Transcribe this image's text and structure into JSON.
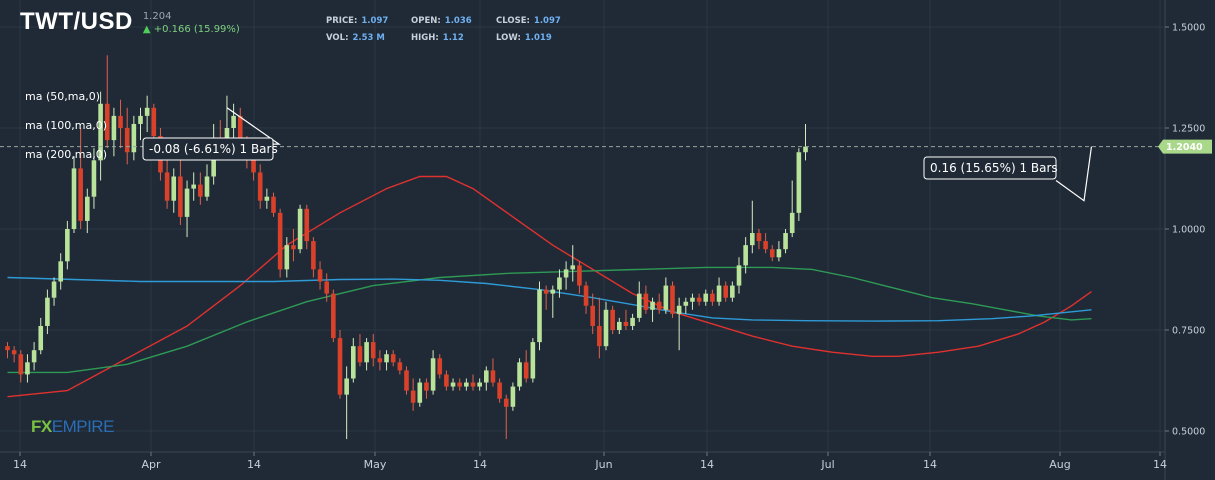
{
  "header": {
    "symbol": "TWT/USD",
    "last": "1.204",
    "change": "+0.166 (15.99%)",
    "change_arrow_icon": "arrow-up-icon"
  },
  "stats": {
    "price_label": "PRICE:",
    "price": "1.097",
    "open_label": "OPEN:",
    "open": "1.036",
    "close_label": "CLOSE:",
    "close": "1.097",
    "vol_label": "VOL:",
    "vol": "2.53 M",
    "high_label": "HIGH:",
    "high": "1.12",
    "low_label": "LOW:",
    "low": "1.019"
  },
  "indicators": [
    "ma (50,ma,0)",
    "ma (100,ma,0)",
    "ma (200,ma,0)"
  ],
  "logo": {
    "fx": "FX",
    "empire": "EMPIRE"
  },
  "measures": [
    {
      "label": "-0.08 (-6.61%) 1 Bars"
    },
    {
      "label": "0.16 (15.65%) 1 Bars"
    }
  ],
  "price_line": {
    "value": 1.204,
    "label": "1.2040"
  },
  "colors": {
    "background": "#1f2a36",
    "up": "#b9e39a",
    "down": "#d9412b",
    "ma50": "#e0312f",
    "ma100": "#2e9a55",
    "ma200": "#2e9ad6",
    "grid": "#2b3744"
  },
  "chart_data": {
    "type": "candlestick",
    "ylim": [
      0.45,
      1.55
    ],
    "y_ticks": [
      "1.5000",
      "1.2500",
      "1.0000",
      "0.7500",
      "0.5000"
    ],
    "x_ticks": [
      "14",
      "Apr",
      "14",
      "May",
      "14",
      "Jun",
      "14",
      "Jul",
      "14",
      "Aug",
      "14"
    ],
    "grid": true,
    "series": [
      {
        "name": "TWT/USD",
        "type": "candlestick",
        "ohlc": [
          [
            0.71,
            0.72,
            0.68,
            0.7
          ],
          [
            0.7,
            0.71,
            0.67,
            0.69
          ],
          [
            0.69,
            0.7,
            0.62,
            0.64
          ],
          [
            0.64,
            0.69,
            0.62,
            0.67
          ],
          [
            0.67,
            0.72,
            0.65,
            0.7
          ],
          [
            0.7,
            0.78,
            0.69,
            0.76
          ],
          [
            0.76,
            0.85,
            0.74,
            0.83
          ],
          [
            0.83,
            0.88,
            0.81,
            0.87
          ],
          [
            0.87,
            0.94,
            0.85,
            0.92
          ],
          [
            0.92,
            1.02,
            0.9,
            1.0
          ],
          [
            1.0,
            1.18,
            0.99,
            1.15
          ],
          [
            1.15,
            1.25,
            1.0,
            1.02
          ],
          [
            1.02,
            1.1,
            0.99,
            1.08
          ],
          [
            1.08,
            1.2,
            1.05,
            1.17
          ],
          [
            1.17,
            1.34,
            1.12,
            1.31
          ],
          [
            1.31,
            1.43,
            1.2,
            1.22
          ],
          [
            1.22,
            1.3,
            1.18,
            1.28
          ],
          [
            1.28,
            1.32,
            1.2,
            1.25
          ],
          [
            1.25,
            1.3,
            1.16,
            1.19
          ],
          [
            1.19,
            1.28,
            1.17,
            1.26
          ],
          [
            1.26,
            1.3,
            1.22,
            1.28
          ],
          [
            1.28,
            1.33,
            1.24,
            1.3
          ],
          [
            1.3,
            1.31,
            1.21,
            1.23
          ],
          [
            1.23,
            1.25,
            1.12,
            1.14
          ],
          [
            1.14,
            1.17,
            1.05,
            1.07
          ],
          [
            1.07,
            1.15,
            1.04,
            1.13
          ],
          [
            1.13,
            1.18,
            1.01,
            1.03
          ],
          [
            1.03,
            1.12,
            0.98,
            1.1
          ],
          [
            1.1,
            1.14,
            1.07,
            1.11
          ],
          [
            1.11,
            1.14,
            1.06,
            1.08
          ],
          [
            1.08,
            1.16,
            1.07,
            1.13
          ],
          [
            1.13,
            1.26,
            1.11,
            1.21
          ],
          [
            1.21,
            1.27,
            1.17,
            1.2
          ],
          [
            1.2,
            1.33,
            1.18,
            1.25
          ],
          [
            1.25,
            1.31,
            1.22,
            1.28
          ],
          [
            1.28,
            1.3,
            1.18,
            1.2
          ],
          [
            1.2,
            1.23,
            1.15,
            1.17
          ],
          [
            1.17,
            1.21,
            1.12,
            1.14
          ],
          [
            1.14,
            1.16,
            1.05,
            1.07
          ],
          [
            1.07,
            1.1,
            1.05,
            1.08
          ],
          [
            1.08,
            1.09,
            1.03,
            1.04
          ],
          [
            1.04,
            1.05,
            0.88,
            0.9
          ],
          [
            0.9,
            0.98,
            0.88,
            0.96
          ],
          [
            0.96,
            1.0,
            0.92,
            0.95
          ],
          [
            0.95,
            1.06,
            0.94,
            1.05
          ],
          [
            1.05,
            1.06,
            0.95,
            0.97
          ],
          [
            0.97,
            0.98,
            0.88,
            0.9
          ],
          [
            0.9,
            0.92,
            0.85,
            0.87
          ],
          [
            0.87,
            0.89,
            0.82,
            0.84
          ],
          [
            0.84,
            0.85,
            0.72,
            0.73
          ],
          [
            0.73,
            0.75,
            0.58,
            0.59
          ],
          [
            0.59,
            0.66,
            0.48,
            0.63
          ],
          [
            0.63,
            0.73,
            0.62,
            0.71
          ],
          [
            0.71,
            0.74,
            0.66,
            0.67
          ],
          [
            0.67,
            0.73,
            0.65,
            0.72
          ],
          [
            0.72,
            0.74,
            0.66,
            0.68
          ],
          [
            0.68,
            0.7,
            0.65,
            0.67
          ],
          [
            0.67,
            0.7,
            0.65,
            0.69
          ],
          [
            0.69,
            0.7,
            0.66,
            0.67
          ],
          [
            0.67,
            0.68,
            0.64,
            0.65
          ],
          [
            0.65,
            0.66,
            0.59,
            0.6
          ],
          [
            0.6,
            0.63,
            0.55,
            0.57
          ],
          [
            0.57,
            0.63,
            0.56,
            0.62
          ],
          [
            0.62,
            0.63,
            0.58,
            0.6
          ],
          [
            0.6,
            0.7,
            0.59,
            0.68
          ],
          [
            0.68,
            0.69,
            0.63,
            0.64
          ],
          [
            0.64,
            0.65,
            0.6,
            0.61
          ],
          [
            0.61,
            0.63,
            0.6,
            0.62
          ],
          [
            0.62,
            0.63,
            0.6,
            0.61
          ],
          [
            0.61,
            0.63,
            0.6,
            0.62
          ],
          [
            0.62,
            0.64,
            0.6,
            0.61
          ],
          [
            0.61,
            0.63,
            0.6,
            0.62
          ],
          [
            0.62,
            0.66,
            0.6,
            0.65
          ],
          [
            0.65,
            0.68,
            0.61,
            0.62
          ],
          [
            0.62,
            0.63,
            0.57,
            0.58
          ],
          [
            0.58,
            0.59,
            0.48,
            0.56
          ],
          [
            0.56,
            0.62,
            0.55,
            0.61
          ],
          [
            0.61,
            0.68,
            0.6,
            0.67
          ],
          [
            0.67,
            0.7,
            0.62,
            0.63
          ],
          [
            0.63,
            0.73,
            0.62,
            0.72
          ],
          [
            0.72,
            0.87,
            0.7,
            0.85
          ],
          [
            0.85,
            0.86,
            0.8,
            0.84
          ],
          [
            0.84,
            0.86,
            0.78,
            0.85
          ],
          [
            0.85,
            0.9,
            0.83,
            0.88
          ],
          [
            0.88,
            0.92,
            0.85,
            0.9
          ],
          [
            0.9,
            0.96,
            0.87,
            0.91
          ],
          [
            0.91,
            0.92,
            0.84,
            0.86
          ],
          [
            0.86,
            0.87,
            0.79,
            0.81
          ],
          [
            0.81,
            0.84,
            0.74,
            0.76
          ],
          [
            0.76,
            0.83,
            0.68,
            0.71
          ],
          [
            0.71,
            0.82,
            0.7,
            0.8
          ],
          [
            0.8,
            0.81,
            0.74,
            0.75
          ],
          [
            0.75,
            0.78,
            0.74,
            0.77
          ],
          [
            0.77,
            0.8,
            0.75,
            0.76
          ],
          [
            0.76,
            0.79,
            0.75,
            0.78
          ],
          [
            0.78,
            0.87,
            0.77,
            0.84
          ],
          [
            0.84,
            0.86,
            0.79,
            0.8
          ],
          [
            0.8,
            0.83,
            0.77,
            0.82
          ],
          [
            0.82,
            0.84,
            0.79,
            0.8
          ],
          [
            0.8,
            0.88,
            0.79,
            0.86
          ],
          [
            0.86,
            0.87,
            0.78,
            0.79
          ],
          [
            0.79,
            0.83,
            0.7,
            0.81
          ],
          [
            0.81,
            0.83,
            0.79,
            0.82
          ],
          [
            0.82,
            0.84,
            0.8,
            0.83
          ],
          [
            0.83,
            0.84,
            0.81,
            0.82
          ],
          [
            0.82,
            0.85,
            0.81,
            0.84
          ],
          [
            0.84,
            0.85,
            0.81,
            0.82
          ],
          [
            0.82,
            0.88,
            0.81,
            0.86
          ],
          [
            0.86,
            0.87,
            0.82,
            0.83
          ],
          [
            0.83,
            0.87,
            0.82,
            0.86
          ],
          [
            0.86,
            0.93,
            0.84,
            0.91
          ],
          [
            0.91,
            0.98,
            0.89,
            0.96
          ],
          [
            0.96,
            1.07,
            0.94,
            0.99
          ],
          [
            0.99,
            1.0,
            0.95,
            0.97
          ],
          [
            0.97,
            0.99,
            0.94,
            0.95
          ],
          [
            0.95,
            0.96,
            0.92,
            0.93
          ],
          [
            0.93,
            0.97,
            0.92,
            0.95
          ],
          [
            0.95,
            1.0,
            0.94,
            0.99
          ],
          [
            0.99,
            1.12,
            0.98,
            1.04
          ],
          [
            1.04,
            1.2,
            1.02,
            1.19
          ],
          [
            1.19,
            1.26,
            1.17,
            1.204
          ]
        ]
      },
      {
        "name": "ma (50,ma,0)",
        "type": "line",
        "color": "#e0312f",
        "points": [
          [
            0,
            0.585
          ],
          [
            9,
            0.6
          ],
          [
            18,
            0.68
          ],
          [
            27,
            0.76
          ],
          [
            35,
            0.86
          ],
          [
            42,
            0.96
          ],
          [
            50,
            1.04
          ],
          [
            57,
            1.1
          ],
          [
            62,
            1.13
          ],
          [
            66,
            1.13
          ],
          [
            70,
            1.1
          ],
          [
            76,
            1.03
          ],
          [
            82,
            0.96
          ],
          [
            88,
            0.9
          ],
          [
            94,
            0.84
          ],
          [
            100,
            0.795
          ],
          [
            106,
            0.765
          ],
          [
            112,
            0.735
          ],
          [
            118,
            0.71
          ],
          [
            124,
            0.695
          ],
          [
            130,
            0.685
          ],
          [
            134,
            0.685
          ],
          [
            140,
            0.695
          ],
          [
            146,
            0.71
          ],
          [
            152,
            0.74
          ],
          [
            156,
            0.77
          ],
          [
            160,
            0.81
          ],
          [
            163,
            0.845
          ]
        ]
      },
      {
        "name": "ma (100,ma,0)",
        "type": "line",
        "color": "#2e9a55",
        "points": [
          [
            0,
            0.645
          ],
          [
            9,
            0.645
          ],
          [
            18,
            0.665
          ],
          [
            27,
            0.71
          ],
          [
            36,
            0.77
          ],
          [
            45,
            0.82
          ],
          [
            55,
            0.86
          ],
          [
            65,
            0.88
          ],
          [
            75,
            0.89
          ],
          [
            85,
            0.895
          ],
          [
            95,
            0.9
          ],
          [
            105,
            0.905
          ],
          [
            115,
            0.905
          ],
          [
            121,
            0.9
          ],
          [
            127,
            0.88
          ],
          [
            133,
            0.855
          ],
          [
            139,
            0.83
          ],
          [
            145,
            0.815
          ],
          [
            150,
            0.8
          ],
          [
            155,
            0.785
          ],
          [
            160,
            0.775
          ],
          [
            163,
            0.778
          ]
        ]
      },
      {
        "name": "ma (200,ma,0)",
        "type": "line",
        "color": "#2e9ad6",
        "points": [
          [
            0,
            0.88
          ],
          [
            10,
            0.875
          ],
          [
            20,
            0.87
          ],
          [
            30,
            0.87
          ],
          [
            40,
            0.87
          ],
          [
            50,
            0.875
          ],
          [
            58,
            0.876
          ],
          [
            65,
            0.873
          ],
          [
            72,
            0.865
          ],
          [
            80,
            0.85
          ],
          [
            88,
            0.83
          ],
          [
            95,
            0.81
          ],
          [
            100,
            0.795
          ],
          [
            106,
            0.78
          ],
          [
            112,
            0.775
          ],
          [
            120,
            0.773
          ],
          [
            130,
            0.772
          ],
          [
            140,
            0.773
          ],
          [
            148,
            0.778
          ],
          [
            154,
            0.785
          ],
          [
            160,
            0.795
          ],
          [
            163,
            0.8
          ]
        ]
      }
    ],
    "annotations": [
      {
        "text": "-0.08 (-6.61%) 1 Bars",
        "from": 1.3,
        "to": 1.21
      },
      {
        "text": "0.16 (15.65%) 1 Bars",
        "from": 1.04,
        "to": 1.204
      }
    ],
    "current_price": 1.204
  }
}
